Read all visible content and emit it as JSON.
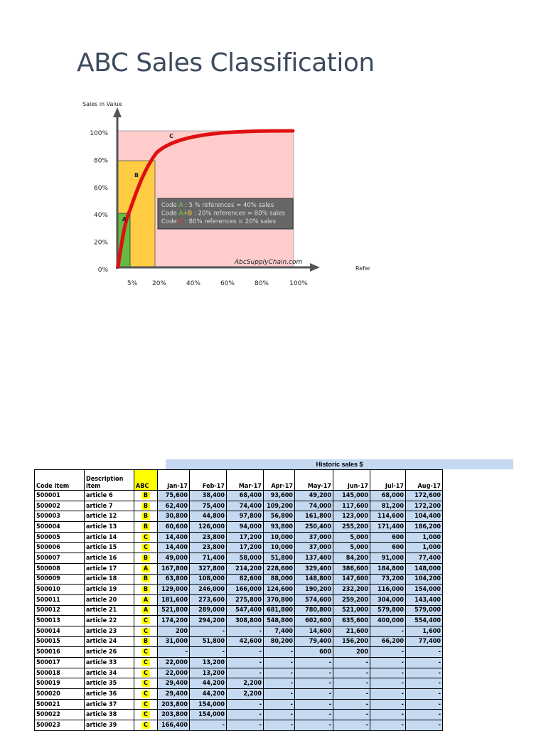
{
  "header": {
    "title": "ABC Sales Classification"
  },
  "diagram": {
    "y_axis_label": "Sales in Value",
    "x_axis_label": "References",
    "y_ticks": [
      "100%",
      "80%",
      "60%",
      "40%",
      "20%",
      "0%"
    ],
    "x_ticks": [
      "5%",
      "20%",
      "40%",
      "60%",
      "80%",
      "100%"
    ],
    "zones": [
      "A",
      "B",
      "C"
    ],
    "legend": [
      [
        "Code ",
        "A",
        " : 5 % references = 40% sales"
      ],
      [
        "Code ",
        "A",
        "+",
        "B",
        " : 20% references = 80% sales"
      ],
      [
        "Code ",
        "C",
        " : 80% references = 20% sales"
      ]
    ],
    "source": "AbcSupplyChain.com"
  },
  "table": {
    "group_header": "Historic sales $",
    "columns": [
      "Code item",
      "Description item",
      "ABC",
      "Jan-17",
      "Feb-17",
      "Mar-17",
      "Apr-17",
      "May-17",
      "Jun-17",
      "Jul-17",
      "Aug-17"
    ],
    "rows": [
      [
        "500001",
        "article 6",
        "B",
        "75,600",
        "38,400",
        "68,400",
        "93,600",
        "49,200",
        "145,000",
        "68,000",
        "172,600"
      ],
      [
        "500002",
        "article 7",
        "B",
        "62,400",
        "75,400",
        "74,400",
        "109,200",
        "74,000",
        "117,600",
        "81,200",
        "172,200"
      ],
      [
        "500003",
        "article 12",
        "B",
        "30,800",
        "44,800",
        "97,800",
        "56,800",
        "161,800",
        "123,000",
        "114,600",
        "104,400"
      ],
      [
        "500004",
        "article 13",
        "B",
        "60,600",
        "126,000",
        "94,000",
        "93,800",
        "250,400",
        "255,200",
        "171,400",
        "186,200"
      ],
      [
        "500005",
        "article 14",
        "C",
        "14,400",
        "23,800",
        "17,200",
        "10,000",
        "37,000",
        "5,000",
        "600",
        "1,000"
      ],
      [
        "500006",
        "article 15",
        "C",
        "14,400",
        "23,800",
        "17,200",
        "10,000",
        "37,000",
        "5,000",
        "600",
        "1,000"
      ],
      [
        "500007",
        "article 16",
        "B",
        "49,000",
        "71,400",
        "58,000",
        "51,800",
        "137,400",
        "84,200",
        "91,000",
        "77,400"
      ],
      [
        "500008",
        "article 17",
        "A",
        "167,800",
        "327,800",
        "214,200",
        "228,600",
        "329,400",
        "386,600",
        "184,800",
        "148,000"
      ],
      [
        "500009",
        "article 18",
        "B",
        "63,800",
        "108,000",
        "82,600",
        "88,000",
        "148,800",
        "147,600",
        "73,200",
        "104,200"
      ],
      [
        "500010",
        "article 19",
        "B",
        "129,000",
        "246,000",
        "166,000",
        "124,600",
        "190,200",
        "232,200",
        "116,000",
        "154,000"
      ],
      [
        "500011",
        "article 20",
        "A",
        "181,600",
        "273,600",
        "275,800",
        "370,800",
        "574,600",
        "259,200",
        "304,000",
        "143,400"
      ],
      [
        "500012",
        "article 21",
        "A",
        "521,800",
        "289,000",
        "547,400",
        "681,800",
        "780,800",
        "521,000",
        "579,800",
        "579,000"
      ],
      [
        "500013",
        "article 22",
        "C",
        "174,200",
        "294,200",
        "308,800",
        "548,800",
        "602,600",
        "635,600",
        "400,000",
        "554,400"
      ],
      [
        "500014",
        "article 23",
        "C",
        "200",
        "-",
        "-",
        "7,400",
        "14,600",
        "21,600",
        "-",
        "1,600"
      ],
      [
        "500015",
        "article 24",
        "B",
        "31,000",
        "51,800",
        "42,600",
        "80,200",
        "79,400",
        "156,200",
        "66,200",
        "77,400"
      ],
      [
        "500016",
        "article 26",
        "C",
        "-",
        "-",
        "-",
        "-",
        "600",
        "200",
        "-",
        "-"
      ],
      [
        "500017",
        "article 33",
        "C",
        "22,000",
        "13,200",
        "-",
        "-",
        "-",
        "-",
        "-",
        "-"
      ],
      [
        "500018",
        "article 34",
        "C",
        "22,000",
        "13,200",
        "-",
        "-",
        "-",
        "-",
        "-",
        "-"
      ],
      [
        "500019",
        "article 35",
        "C",
        "29,400",
        "44,200",
        "2,200",
        "-",
        "-",
        "-",
        "-",
        "-"
      ],
      [
        "500020",
        "article 36",
        "C",
        "29,400",
        "44,200",
        "2,200",
        "-",
        "-",
        "-",
        "-",
        "-"
      ],
      [
        "500021",
        "article 37",
        "C",
        "203,800",
        "154,000",
        "-",
        "-",
        "-",
        "-",
        "-",
        "-"
      ],
      [
        "500022",
        "article 38",
        "C",
        "203,800",
        "154,000",
        "-",
        "-",
        "-",
        "-",
        "-",
        "-"
      ],
      [
        "500023",
        "article 39",
        "C",
        "166,400",
        "-",
        "-",
        "-",
        "-",
        "-",
        "-",
        "-"
      ]
    ]
  }
}
